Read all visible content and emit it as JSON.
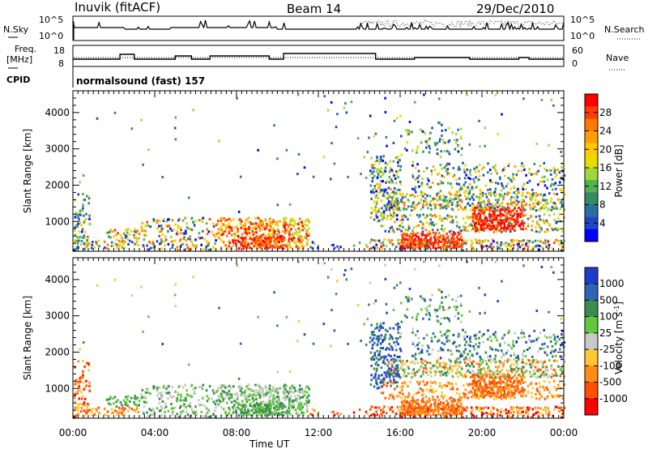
{
  "header": {
    "station": "Inuvik (fitACF)",
    "beam": "Beam 14",
    "date": "29/Dec/2010"
  },
  "status_panels": {
    "nsky_label": "N.Sky",
    "nsearch_label": "N.Search",
    "freq_label_1": "Freq.",
    "freq_label_2": "[MHz]",
    "nave_label": "Nave",
    "cpid_label": "CPID",
    "cpid_text": "normalsound (fast) 157",
    "noise_ticks": [
      "10^5",
      "10^0"
    ],
    "freq_ticks": [
      "18",
      "8"
    ],
    "nave_ticks": [
      "60",
      "0"
    ]
  },
  "chart_data": [
    {
      "type": "heatmap",
      "title": "",
      "quantity": "Power",
      "ylabel": "Slant Range [km]",
      "xlabel": "Time UT",
      "x_ticks": [
        "00:00",
        "04:00",
        "08:00",
        "12:00",
        "16:00",
        "20:00",
        "00:00"
      ],
      "y_ticks": [
        1000,
        2000,
        3000,
        4000
      ],
      "ylim": [
        180,
        4600
      ],
      "xlim_hours": [
        0,
        24
      ],
      "colorbar": {
        "label": "Power [dB]",
        "ticks": [
          "28",
          "24",
          "20",
          "16",
          "12",
          "8",
          "4"
        ],
        "colors": [
          "#ff0000",
          "#ff3c00",
          "#ff7800",
          "#ffa000",
          "#ffc800",
          "#e6dc00",
          "#a0d83c",
          "#50b450",
          "#328c64",
          "#2d6ea0",
          "#1e46c8",
          "#0000ff"
        ]
      }
    },
    {
      "type": "heatmap",
      "title": "",
      "quantity": "Velocity",
      "ylabel": "Slant Range [km]",
      "xlabel": "Time UT",
      "x_ticks": [
        "00:00",
        "04:00",
        "08:00",
        "12:00",
        "16:00",
        "20:00",
        "00:00"
      ],
      "y_ticks": [
        1000,
        2000,
        3000,
        4000
      ],
      "ylim": [
        180,
        4600
      ],
      "xlim_hours": [
        0,
        24
      ],
      "colorbar": {
        "label": "Velocity [m s",
        "label_sup": "-1",
        "label_close": "]",
        "ticks": [
          "1000",
          "500",
          "100",
          "25",
          "-25",
          "-100",
          "-500",
          "-1000"
        ],
        "colors": [
          "#1e3cc8",
          "#2d64b4",
          "#3c8c50",
          "#64c83c",
          "#c8c8c8",
          "#ffc832",
          "#ff8c14",
          "#ff5000",
          "#ff0000"
        ]
      }
    }
  ]
}
